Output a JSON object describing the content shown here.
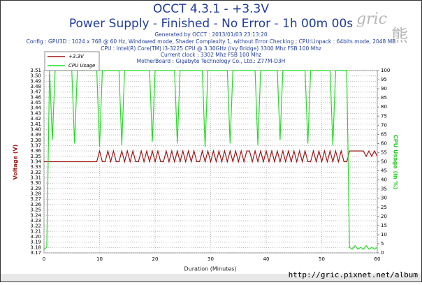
{
  "chart_data": {
    "type": "line",
    "title": "OCCT 4.3.1 - +3.3V",
    "subtitle": "Power Supply - Finished - No Error - 1h 00m 00s",
    "info": [
      "Generated by OCCT : 2013/01/03 23:13:20",
      "Config : GPU3D : 1024 x 768 @ 60 Hz, Windowed mode, Shader Complexity 1, without Error Checking ; CPU:Linpack : 64bits mode, 2048 MB",
      "CPU : Intel(R) Core(TM) i3-3225 CPU @ 3.30GHz (Ivy Bridge) 3300 Mhz FSB 100 Mhz",
      "Current clock : 3302 Mhz FSB 100 Mhz",
      "MotherBoard : Gigabyte Technology Co., Ltd.: Z77M-D3H"
    ],
    "watermark": [
      "gric",
      "熊",
      "http://gric.pixnet.net/album"
    ],
    "xlabel": "Duration (Minutes)",
    "ylabel": "Voltage (V)",
    "y2label": "CPU Usage (in %)",
    "x": [
      0,
      0.5,
      1,
      1.5,
      2,
      2.5,
      3,
      3.5,
      4,
      4.5,
      5,
      5.5,
      6,
      6.5,
      7,
      7.5,
      8,
      8.5,
      9,
      9.5,
      10,
      10.5,
      11,
      11.5,
      12,
      12.5,
      13,
      13.5,
      14,
      14.5,
      15,
      15.5,
      16,
      16.5,
      17,
      17.5,
      18,
      18.5,
      19,
      19.5,
      20,
      20.5,
      21,
      21.5,
      22,
      22.5,
      23,
      23.5,
      24,
      24.5,
      25,
      25.5,
      26,
      26.5,
      27,
      27.5,
      28,
      28.5,
      29,
      29.5,
      30,
      30.5,
      31,
      31.5,
      32,
      32.5,
      33,
      33.5,
      34,
      34.5,
      35,
      35.5,
      36,
      36.5,
      37,
      37.5,
      38,
      38.5,
      39,
      39.5,
      40,
      40.5,
      41,
      41.5,
      42,
      42.5,
      43,
      43.5,
      44,
      44.5,
      45,
      45.5,
      46,
      46.5,
      47,
      47.5,
      48,
      48.5,
      49,
      49.5,
      50,
      50.5,
      51,
      51.5,
      52,
      52.5,
      53,
      53.5,
      54,
      54.5,
      55,
      55.5,
      56,
      56.5,
      57,
      57.5,
      58,
      58.5,
      59,
      59.5,
      60
    ],
    "series": [
      {
        "name": "+3.3V",
        "color": "#a01414",
        "values": [
          3.34,
          3.34,
          3.34,
          3.34,
          3.34,
          3.34,
          3.34,
          3.34,
          3.34,
          3.34,
          3.34,
          3.34,
          3.34,
          3.34,
          3.34,
          3.34,
          3.34,
          3.34,
          3.34,
          3.34,
          3.36,
          3.34,
          3.34,
          3.36,
          3.34,
          3.36,
          3.34,
          3.34,
          3.36,
          3.34,
          3.36,
          3.34,
          3.36,
          3.34,
          3.34,
          3.36,
          3.34,
          3.36,
          3.34,
          3.36,
          3.34,
          3.36,
          3.34,
          3.34,
          3.36,
          3.34,
          3.36,
          3.34,
          3.36,
          3.34,
          3.36,
          3.34,
          3.36,
          3.34,
          3.36,
          3.34,
          3.34,
          3.36,
          3.34,
          3.36,
          3.34,
          3.36,
          3.34,
          3.36,
          3.34,
          3.36,
          3.34,
          3.36,
          3.34,
          3.36,
          3.34,
          3.36,
          3.34,
          3.36,
          3.36,
          3.34,
          3.36,
          3.34,
          3.36,
          3.34,
          3.36,
          3.34,
          3.36,
          3.34,
          3.36,
          3.34,
          3.36,
          3.34,
          3.36,
          3.34,
          3.36,
          3.34,
          3.36,
          3.34,
          3.36,
          3.34,
          3.34,
          3.36,
          3.34,
          3.36,
          3.34,
          3.36,
          3.34,
          3.36,
          3.34,
          3.36,
          3.34,
          3.36,
          3.34,
          3.34,
          3.36,
          3.36,
          3.36,
          3.36,
          3.36,
          3.36,
          3.35,
          3.36,
          3.35,
          3.36,
          3.35
        ]
      },
      {
        "name": "CPU Usage",
        "color": "#22dd22",
        "axis": "y2",
        "values": [
          2,
          3,
          100,
          62,
          100,
          100,
          100,
          100,
          100,
          100,
          100,
          60,
          100,
          100,
          100,
          100,
          100,
          100,
          100,
          100,
          58,
          100,
          100,
          100,
          100,
          100,
          100,
          100,
          59,
          100,
          100,
          100,
          100,
          100,
          100,
          100,
          100,
          100,
          100,
          61,
          100,
          100,
          100,
          100,
          100,
          100,
          100,
          100,
          60,
          100,
          100,
          100,
          100,
          100,
          100,
          100,
          100,
          100,
          58,
          100,
          100,
          100,
          100,
          100,
          100,
          100,
          100,
          60,
          100,
          100,
          100,
          100,
          100,
          100,
          100,
          100,
          100,
          59,
          100,
          100,
          100,
          100,
          100,
          100,
          100,
          62,
          100,
          100,
          100,
          100,
          100,
          100,
          100,
          100,
          100,
          60,
          100,
          100,
          100,
          100,
          100,
          100,
          100,
          100,
          59,
          100,
          100,
          100,
          100,
          100,
          3,
          2,
          4,
          2,
          3,
          2,
          4,
          2,
          3,
          2,
          3
        ]
      }
    ],
    "xlim": [
      0,
      60
    ],
    "xticks": [
      0,
      10,
      20,
      30,
      40,
      50,
      60
    ],
    "ylim": [
      3.17,
      3.51
    ],
    "yticks": [
      3.17,
      3.18,
      3.19,
      {
        "value": 3.2,
        "label": "3.20"
      },
      3.21,
      3.22,
      3.23,
      3.24,
      3.25,
      3.26,
      3.27,
      3.28,
      3.29,
      {
        "value": 3.3,
        "label": "3.30"
      },
      3.31,
      3.32,
      3.33,
      3.34,
      3.35,
      3.36,
      3.37,
      3.38,
      3.39,
      {
        "value": 3.4,
        "label": "3.40"
      },
      3.41,
      3.42,
      3.43,
      3.44,
      3.45,
      3.46,
      3.47,
      3.48,
      3.49,
      {
        "value": 3.5,
        "label": "3.50"
      },
      3.51
    ],
    "y2lim": [
      0,
      100
    ],
    "y2ticks": [
      0,
      5,
      10,
      15,
      20,
      25,
      30,
      35,
      40,
      45,
      50,
      55,
      60,
      65,
      70,
      75,
      80,
      85,
      90,
      95,
      100
    ],
    "grid": true
  }
}
